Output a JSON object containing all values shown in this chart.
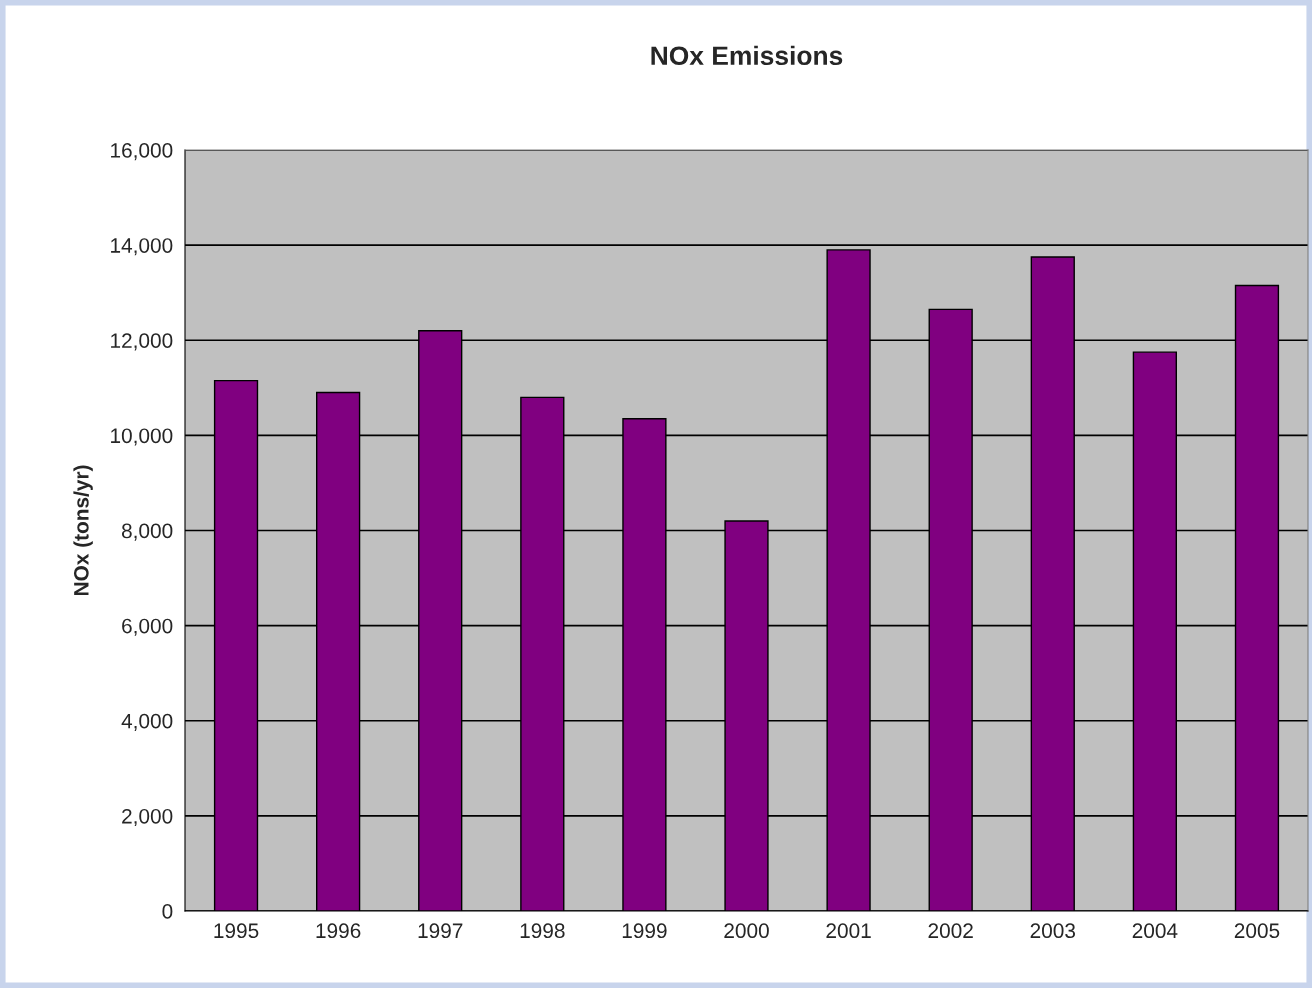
{
  "chart_data": {
    "type": "bar",
    "title": "NOx Emissions",
    "ylabel": "NOx (tons/yr)",
    "categories": [
      "1995",
      "1996",
      "1997",
      "1998",
      "1999",
      "2000",
      "2001",
      "2002",
      "2003",
      "2004",
      "2005"
    ],
    "values": [
      11150,
      10900,
      12200,
      10800,
      10350,
      8200,
      13900,
      12650,
      13750,
      11750,
      13150
    ],
    "color": "#800080",
    "ylim": [
      0,
      16000
    ],
    "yticks": [
      {
        "value": 0,
        "label": "0"
      },
      {
        "value": 2000,
        "label": "2,000"
      },
      {
        "value": 4000,
        "label": "4,000"
      },
      {
        "value": 6000,
        "label": "6,000"
      },
      {
        "value": 8000,
        "label": "8,000"
      },
      {
        "value": 10000,
        "label": "10,000"
      },
      {
        "value": 12000,
        "label": "12,000"
      },
      {
        "value": 14000,
        "label": "14,000"
      },
      {
        "value": 16000,
        "label": "16,000"
      }
    ],
    "grid": "y"
  }
}
